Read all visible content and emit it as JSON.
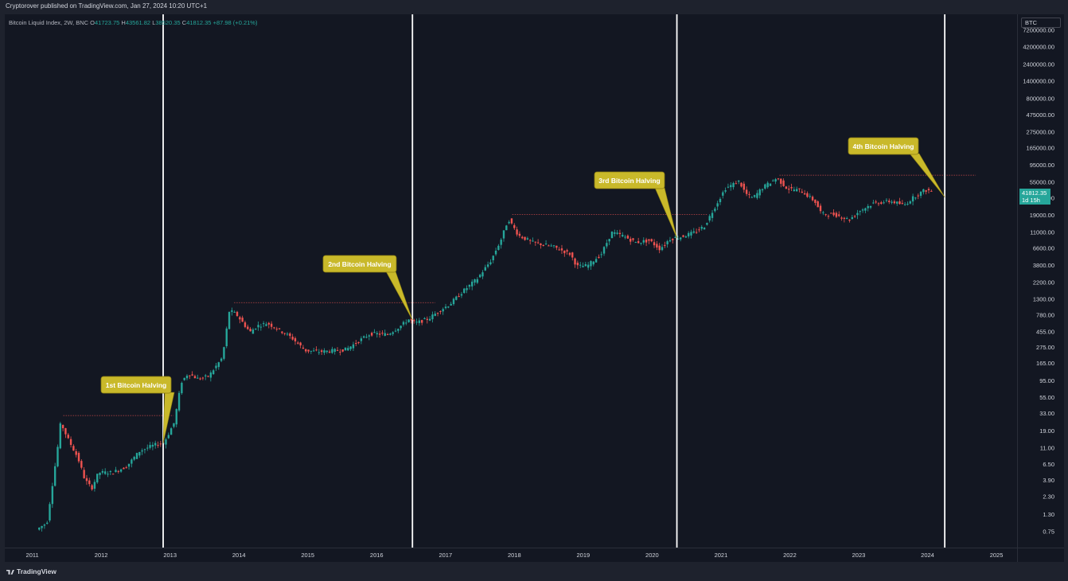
{
  "header": {
    "publisher_text": "Cryptorover published on TradingView.com, Jan 27, 2024 10:20 UTC+1"
  },
  "legend": {
    "title": "Bitcoin Liquid Index, 2W, BNC",
    "open_label": "O",
    "open": "41723.75",
    "high_label": "H",
    "high": "43561.82",
    "low_label": "L",
    "low": "38520.35",
    "close_label": "C",
    "close": "41812.35",
    "change": "+87.98 (+0.21%)"
  },
  "symbol_box": "BTC",
  "last_price": {
    "value": "41812.35",
    "countdown": "1d 15h"
  },
  "footer": {
    "brand": "TradingView"
  },
  "colors": {
    "up": "#26a69a",
    "down": "#ef5350",
    "halving_line": "#ffffff",
    "callout_fill": "#c9b92a",
    "callout_text": "#ffffff",
    "dotted": "#ef5350",
    "background": "#131722"
  },
  "chart_data": {
    "type": "candlestick",
    "title": "Bitcoin Liquid Index, 2W, BNC",
    "y_scale": "log",
    "ylim": [
      0.45,
      12000000
    ],
    "x_range": [
      2010.6,
      2025.3
    ],
    "y_ticks": [
      "0.75",
      "1.30",
      "2.30",
      "3.90",
      "6.50",
      "11.00",
      "19.00",
      "33.00",
      "55.00",
      "95.00",
      "165.00",
      "275.00",
      "455.00",
      "780.00",
      "1300.00",
      "2200.00",
      "3800.00",
      "6600.00",
      "11000.00",
      "19000.00",
      "33000.00",
      "55000.00",
      "95000.00",
      "165000.00",
      "275000.00",
      "475000.00",
      "800000.00",
      "1400000.00",
      "2400000.00",
      "4200000.00",
      "7200000.00"
    ],
    "x_ticks": [
      "2011",
      "2012",
      "2013",
      "2014",
      "2015",
      "2016",
      "2017",
      "2018",
      "2019",
      "2020",
      "2021",
      "2022",
      "2023",
      "2024",
      "2025"
    ],
    "price_path": [
      [
        2011.1,
        0.8
      ],
      [
        2011.25,
        1.0
      ],
      [
        2011.4,
        10
      ],
      [
        2011.45,
        25
      ],
      [
        2011.55,
        15
      ],
      [
        2011.7,
        8
      ],
      [
        2011.8,
        4
      ],
      [
        2011.9,
        3
      ],
      [
        2012.0,
        5
      ],
      [
        2012.2,
        5
      ],
      [
        2012.4,
        6
      ],
      [
        2012.6,
        10
      ],
      [
        2012.8,
        12
      ],
      [
        2012.95,
        13
      ],
      [
        2013.1,
        25
      ],
      [
        2013.2,
        90
      ],
      [
        2013.3,
        120
      ],
      [
        2013.45,
        100
      ],
      [
        2013.6,
        110
      ],
      [
        2013.8,
        200
      ],
      [
        2013.9,
        900
      ],
      [
        2014.0,
        800
      ],
      [
        2014.1,
        600
      ],
      [
        2014.2,
        450
      ],
      [
        2014.3,
        550
      ],
      [
        2014.45,
        600
      ],
      [
        2014.6,
        500
      ],
      [
        2014.8,
        380
      ],
      [
        2015.0,
        250
      ],
      [
        2015.2,
        240
      ],
      [
        2015.45,
        250
      ],
      [
        2015.6,
        260
      ],
      [
        2015.8,
        350
      ],
      [
        2015.95,
        430
      ],
      [
        2016.2,
        420
      ],
      [
        2016.4,
        560
      ],
      [
        2016.5,
        680
      ],
      [
        2016.6,
        600
      ],
      [
        2016.8,
        700
      ],
      [
        2016.95,
        900
      ],
      [
        2017.1,
        1100
      ],
      [
        2017.3,
        1700
      ],
      [
        2017.5,
        2500
      ],
      [
        2017.7,
        4500
      ],
      [
        2017.85,
        9000
      ],
      [
        2017.95,
        17000
      ],
      [
        2018.1,
        10000
      ],
      [
        2018.3,
        8000
      ],
      [
        2018.6,
        7000
      ],
      [
        2018.85,
        5500
      ],
      [
        2018.95,
        3700
      ],
      [
        2019.1,
        3800
      ],
      [
        2019.3,
        5500
      ],
      [
        2019.45,
        11000
      ],
      [
        2019.6,
        10000
      ],
      [
        2019.8,
        8000
      ],
      [
        2020.0,
        8500
      ],
      [
        2020.15,
        6500
      ],
      [
        2020.3,
        9000
      ],
      [
        2020.45,
        9500
      ],
      [
        2020.65,
        11000
      ],
      [
        2020.8,
        13500
      ],
      [
        2020.95,
        25000
      ],
      [
        2021.1,
        45000
      ],
      [
        2021.3,
        57000
      ],
      [
        2021.4,
        38000
      ],
      [
        2021.5,
        33000
      ],
      [
        2021.65,
        47000
      ],
      [
        2021.85,
        63000
      ],
      [
        2022.0,
        45000
      ],
      [
        2022.2,
        42000
      ],
      [
        2022.4,
        30000
      ],
      [
        2022.5,
        20000
      ],
      [
        2022.7,
        19500
      ],
      [
        2022.9,
        16500
      ],
      [
        2023.05,
        22000
      ],
      [
        2023.25,
        28000
      ],
      [
        2023.5,
        30000
      ],
      [
        2023.7,
        26500
      ],
      [
        2023.85,
        35000
      ],
      [
        2024.0,
        43000
      ],
      [
        2024.07,
        41812
      ]
    ],
    "halvings": [
      {
        "date": 2012.9,
        "label": "1st Bitcoin Halving"
      },
      {
        "date": 2016.52,
        "label": "2nd Bitcoin Halving"
      },
      {
        "date": 2020.36,
        "label": "3rd Bitcoin Halving"
      },
      {
        "date": 2024.25,
        "label": "4th Bitcoin Halving"
      }
    ],
    "cycle_highs": [
      {
        "from": 2011.45,
        "to": 2013.05,
        "value": 31
      },
      {
        "from": 2013.93,
        "to": 2016.85,
        "value": 1160
      },
      {
        "from": 2017.97,
        "to": 2020.8,
        "value": 19500
      },
      {
        "from": 2021.85,
        "to": 2024.7,
        "value": 69000
      }
    ]
  }
}
